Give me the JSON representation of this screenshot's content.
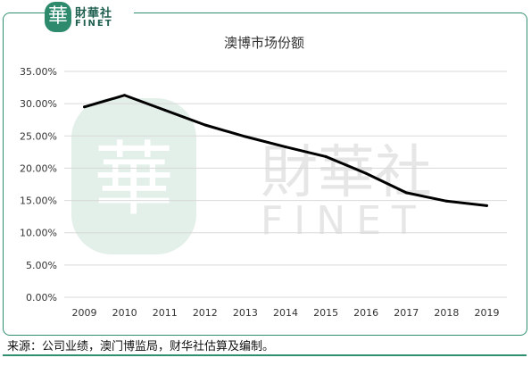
{
  "logo": {
    "badge_char": "華",
    "name_cn": "財華社",
    "name_en": "FINET"
  },
  "watermark": {
    "badge_char": "華",
    "name_cn": "財華社",
    "name_en": "FINET"
  },
  "chart_data": {
    "type": "line",
    "title": "澳博市场份额",
    "xlabel": "",
    "ylabel": "",
    "x": [
      "2009",
      "2010",
      "2011",
      "2012",
      "2013",
      "2014",
      "2015",
      "2016",
      "2017",
      "2018",
      "2019"
    ],
    "y_ticks": [
      "0.00%",
      "5.00%",
      "10.00%",
      "15.00%",
      "20.00%",
      "25.00%",
      "30.00%",
      "35.00%"
    ],
    "ylim": [
      0,
      35
    ],
    "grid": true,
    "series": [
      {
        "values": [
          29.5,
          31.3,
          29.0,
          26.7,
          24.9,
          23.3,
          21.8,
          19.2,
          16.2,
          14.9,
          14.2
        ]
      }
    ],
    "colors": {
      "line": "#000000",
      "grid": "#d9d9d9",
      "axis_text": "#333333",
      "watermark": "#e3efe9"
    }
  },
  "footer": {
    "source_text": "来源：公司业绩，澳门博监局，财华社估算及编制。"
  }
}
